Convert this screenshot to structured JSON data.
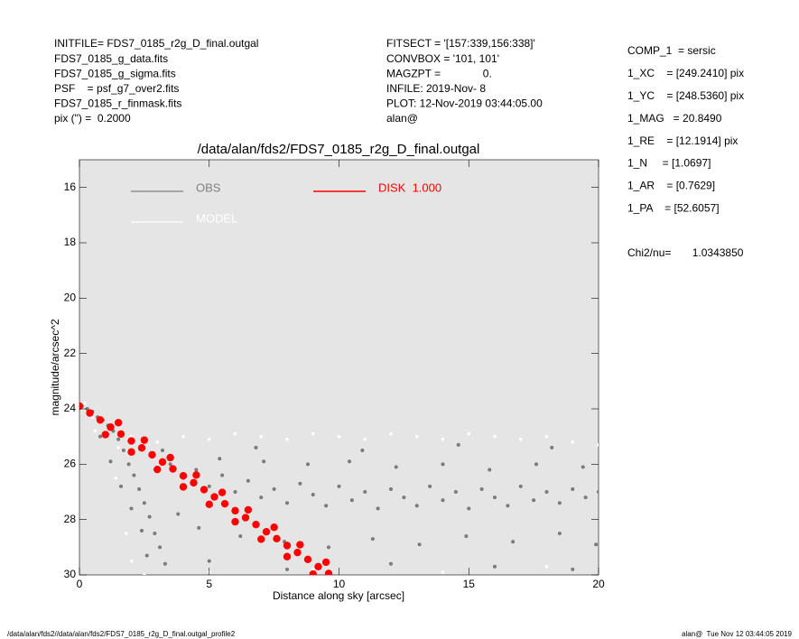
{
  "header": {
    "left": [
      "INITFILE= FDS7_0185_r2g_D_final.outgal",
      "FDS7_0185_g_data.fits",
      "FDS7_0185_g_sigma.fits",
      "PSF    = psf_g7_over2.fits",
      "FDS7_0185_r_finmask.fits",
      "pix (\") =  0.2000"
    ],
    "middle": [
      "FITSECT = '[157:339,156:338]'",
      "CONVBOX = '101, 101'",
      "MAGZPT =              0.",
      "INFILE: 2019-Nov- 8",
      "PLOT: 12-Nov-2019 03:44:05.00",
      "alan@"
    ],
    "right": [
      "COMP_1  = sersic",
      "1_XC    = [249.2410] pix",
      "1_YC    = [248.5360] pix",
      "1_MAG   = 20.8490",
      "1_RE    = [12.1914] pix",
      "1_N     = [1.0697]",
      "1_AR    = [0.7629]",
      "1_PA    = [52.6057]"
    ],
    "chi2": "Chi2/nu=       1.0343850"
  },
  "footer": {
    "left": "/data/alan/fds2//data/alan/fds2/FDS7_0185_r2g_D_final.outgal_profile2",
    "right": "alan@  Tue Nov 12 03:44:05 2019"
  },
  "chart_data": {
    "type": "scatter",
    "title": "/data/alan/fds2/FDS7_0185_r2g_D_final.outgal",
    "x_label": "Distance along sky [arcsec]",
    "y_label": "magnitude/arcsec^2",
    "xlim": [
      0,
      20
    ],
    "xticks": [
      0,
      5,
      10,
      15,
      20
    ],
    "ylim": [
      30,
      15
    ],
    "yticks": [
      16,
      18,
      20,
      22,
      24,
      26,
      28,
      30
    ],
    "background": "#e5e5e5",
    "series": [
      {
        "name": "OBS",
        "color": "#808080",
        "x": [
          0.1,
          0.3,
          0.5,
          0.7,
          0.9,
          1.1,
          1.3,
          1.5,
          1.7,
          1.9,
          2.1,
          2.3,
          2.5,
          2.7,
          2.9,
          3.1,
          3.3,
          0.8,
          1.2,
          1.6,
          2.0,
          2.4,
          2.6,
          3.5,
          4.0,
          4.5,
          5.0,
          5.5,
          6.0,
          6.5,
          7.0,
          7.5,
          8.0,
          8.5,
          9.0,
          9.5,
          10.0,
          10.5,
          11.0,
          11.5,
          12.0,
          12.5,
          13.0,
          13.5,
          14.0,
          14.5,
          15.0,
          15.5,
          16.0,
          16.5,
          17.0,
          17.5,
          18.0,
          18.5,
          19.0,
          19.5,
          20.0,
          3.8,
          4.6,
          5.4,
          6.2,
          7.1,
          7.9,
          8.8,
          9.6,
          10.4,
          11.3,
          12.2,
          13.1,
          14.0,
          14.9,
          15.8,
          16.7,
          17.6,
          18.5,
          19.4,
          19.9,
          5.0,
          8.0,
          12.0,
          16.0,
          19.0,
          3.2,
          6.8,
          10.9,
          14.6,
          18.2
        ],
        "values": [
          23.9,
          24.0,
          24.1,
          24.3,
          24.4,
          24.6,
          24.8,
          25.1,
          25.5,
          26.0,
          26.4,
          26.9,
          27.4,
          27.9,
          28.5,
          29.0,
          29.6,
          25.0,
          25.9,
          26.8,
          27.6,
          28.4,
          29.3,
          26.0,
          26.5,
          26.2,
          26.8,
          26.4,
          27.0,
          26.6,
          27.2,
          26.9,
          27.4,
          26.7,
          27.1,
          27.5,
          26.8,
          27.3,
          27.0,
          27.6,
          26.9,
          27.2,
          27.5,
          26.8,
          27.3,
          27.0,
          27.6,
          26.9,
          27.2,
          27.5,
          26.8,
          27.3,
          27.0,
          27.4,
          26.9,
          27.2,
          27.0,
          27.8,
          28.3,
          25.8,
          28.6,
          25.9,
          28.8,
          26.0,
          29.0,
          25.9,
          28.7,
          26.1,
          28.9,
          26.0,
          28.6,
          26.2,
          28.8,
          26.0,
          28.5,
          26.1,
          28.9,
          29.5,
          29.8,
          29.6,
          29.7,
          29.8,
          25.5,
          25.4,
          25.5,
          25.3,
          25.4
        ]
      },
      {
        "name": "MODEL",
        "color": "#ffffff",
        "x": [
          0.2,
          0.5,
          1.0,
          1.5,
          2.0,
          3.0,
          4.0,
          5.0,
          6.0,
          7.0,
          8.0,
          9.0,
          10.0,
          11.0,
          12.0,
          13.0,
          14.0,
          15.0,
          16.0,
          17.0,
          18.0,
          19.0,
          20.0,
          2.0,
          2.5,
          1.8,
          5.0,
          9.0,
          14.0,
          18.0,
          0.6,
          1.4
        ],
        "values": [
          23.8,
          24.3,
          24.9,
          25.4,
          25.0,
          25.2,
          25.0,
          25.1,
          24.9,
          25.0,
          25.1,
          24.9,
          25.0,
          25.1,
          24.9,
          25.0,
          25.1,
          24.9,
          25.0,
          25.1,
          25.0,
          25.2,
          25.3,
          29.5,
          30.0,
          28.5,
          29.9,
          29.8,
          29.9,
          29.7,
          24.8,
          26.5
        ]
      },
      {
        "name": "DISK  1.000",
        "color": "#ff0000",
        "x": [
          0,
          0.4,
          0.8,
          1.2,
          1.6,
          2.0,
          2.4,
          2.8,
          3.2,
          3.6,
          4.0,
          4.4,
          4.8,
          5.2,
          5.6,
          6.0,
          6.4,
          6.8,
          7.2,
          7.6,
          8.0,
          8.4,
          8.8,
          9.2,
          9.6,
          1,
          2,
          3,
          4,
          5,
          6,
          7,
          8,
          9,
          1.5,
          2.5,
          3.5,
          4.5,
          5.5,
          6.5,
          7.5,
          8.5,
          9.5
        ],
        "values": [
          23.9,
          24.15,
          24.4,
          24.66,
          24.91,
          25.16,
          25.41,
          25.66,
          25.92,
          26.17,
          26.42,
          26.67,
          26.92,
          27.18,
          27.43,
          27.68,
          27.93,
          28.18,
          28.44,
          28.69,
          28.94,
          29.19,
          29.44,
          29.7,
          29.95,
          24.93,
          25.56,
          26.19,
          26.82,
          27.45,
          28.08,
          28.71,
          29.34,
          29.97,
          24.5,
          25.13,
          25.76,
          26.39,
          27.02,
          27.65,
          28.28,
          28.91,
          29.54
        ]
      }
    ]
  }
}
